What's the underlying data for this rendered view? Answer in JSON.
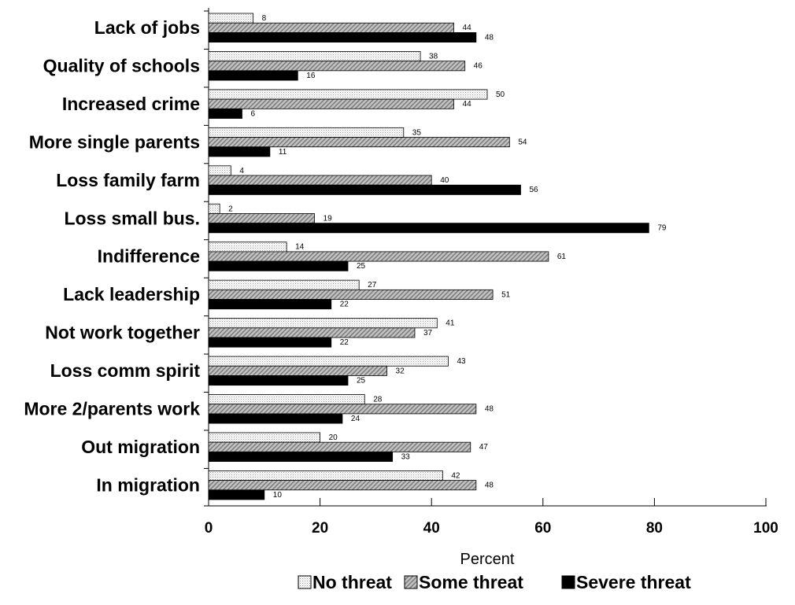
{
  "chart_data": {
    "type": "bar",
    "orientation": "horizontal",
    "categories": [
      "Lack of jobs",
      "Quality of schools",
      "Increased crime",
      "More single parents",
      "Loss family farm",
      "Loss small bus.",
      "Indifference",
      "Lack leadership",
      "Not work together",
      "Loss comm spirit",
      "More 2/parents work",
      "Out migration",
      "In migration"
    ],
    "series": [
      {
        "name": "No threat",
        "values": [
          8,
          38,
          50,
          35,
          4,
          2,
          14,
          27,
          41,
          43,
          28,
          20,
          42
        ]
      },
      {
        "name": "Some threat",
        "values": [
          44,
          46,
          44,
          54,
          40,
          19,
          61,
          51,
          37,
          32,
          48,
          47,
          48
        ]
      },
      {
        "name": "Severe threat",
        "values": [
          48,
          16,
          6,
          11,
          56,
          79,
          25,
          22,
          22,
          25,
          24,
          33,
          10
        ]
      }
    ],
    "xlabel": "Percent",
    "ylabel": "",
    "xlim": [
      0,
      100
    ],
    "xticks": [
      0,
      20,
      40,
      60,
      80,
      100
    ],
    "grid": false,
    "legend_position": "bottom-center",
    "colors": {
      "No threat": "#f2f2f2",
      "Some threat": "#b4b4b4",
      "Severe threat": "#000000"
    }
  }
}
